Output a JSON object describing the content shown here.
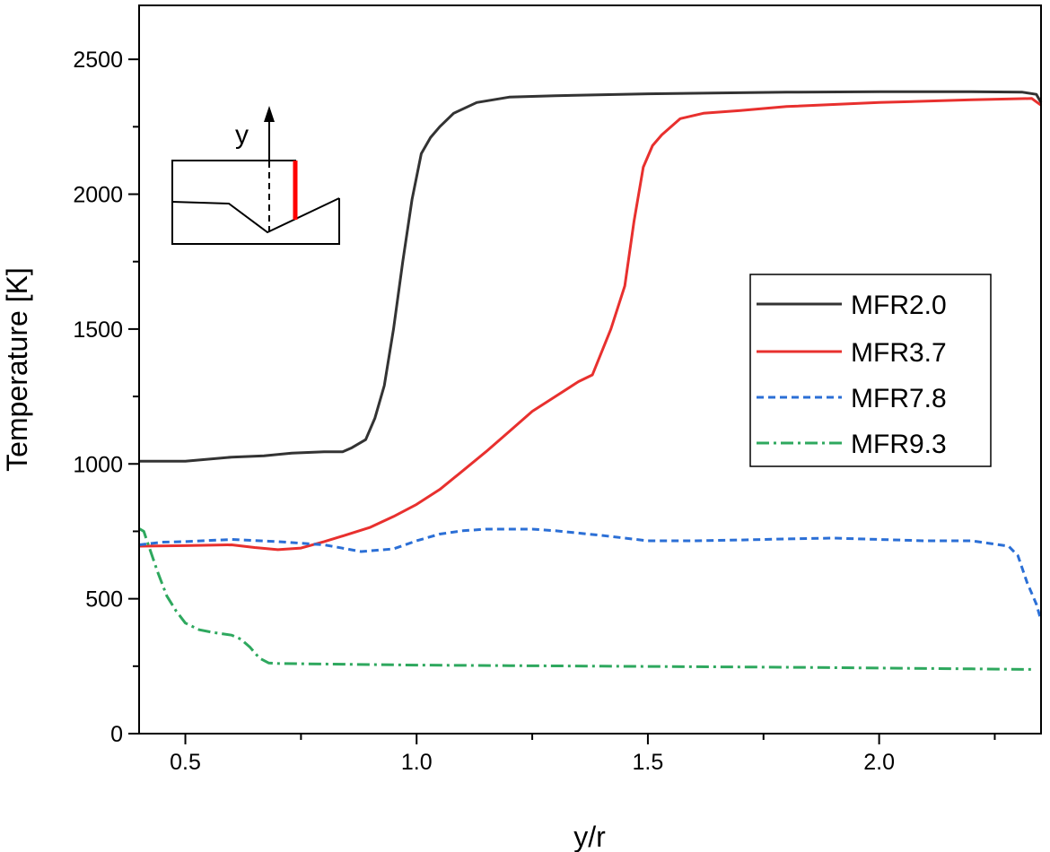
{
  "chart_data": {
    "type": "line",
    "xlabel": "y/r",
    "ylabel": "Temperature [K]",
    "xlim": [
      0.4,
      2.35
    ],
    "ylim": [
      0,
      2700
    ],
    "xticks": [
      0.5,
      1.0,
      1.5,
      2.0
    ],
    "xtick_labels": [
      "0.5",
      "1.0",
      "1.5",
      "2.0"
    ],
    "yticks": [
      0,
      500,
      1000,
      1500,
      2000,
      2500
    ],
    "ytick_labels": [
      "0",
      "500",
      "1000",
      "1500",
      "2000",
      "2500"
    ],
    "legend_position": "right",
    "series": [
      {
        "name": "MFR2.0",
        "color": "#333333",
        "style": "solid",
        "x": [
          0.4,
          0.5,
          0.6,
          0.67,
          0.73,
          0.8,
          0.84,
          0.86,
          0.89,
          0.91,
          0.93,
          0.95,
          0.97,
          0.99,
          1.01,
          1.03,
          1.05,
          1.08,
          1.13,
          1.2,
          1.3,
          1.5,
          1.8,
          2.0,
          2.2,
          2.31,
          2.34,
          2.35
        ],
        "y": [
          1010,
          1010,
          1025,
          1030,
          1040,
          1045,
          1045,
          1060,
          1090,
          1170,
          1290,
          1500,
          1750,
          1980,
          2150,
          2210,
          2250,
          2300,
          2340,
          2360,
          2365,
          2372,
          2378,
          2380,
          2380,
          2378,
          2370,
          2340
        ]
      },
      {
        "name": "MFR3.7",
        "color": "#e8302e",
        "style": "solid",
        "x": [
          0.4,
          0.5,
          0.6,
          0.65,
          0.7,
          0.75,
          0.8,
          0.85,
          0.9,
          0.95,
          1.0,
          1.05,
          1.1,
          1.15,
          1.2,
          1.25,
          1.3,
          1.35,
          1.38,
          1.42,
          1.45,
          1.47,
          1.49,
          1.51,
          1.53,
          1.57,
          1.62,
          1.7,
          1.8,
          2.0,
          2.2,
          2.33,
          2.35
        ],
        "y": [
          695,
          697,
          700,
          690,
          682,
          688,
          712,
          738,
          765,
          805,
          850,
          905,
          975,
          1045,
          1120,
          1195,
          1250,
          1305,
          1330,
          1500,
          1660,
          1900,
          2100,
          2180,
          2220,
          2280,
          2300,
          2310,
          2325,
          2340,
          2350,
          2355,
          2330
        ]
      },
      {
        "name": "MFR7.8",
        "color": "#2b6fd6",
        "style": "dashed",
        "x": [
          0.4,
          0.45,
          0.5,
          0.6,
          0.7,
          0.8,
          0.88,
          0.95,
          1.0,
          1.05,
          1.1,
          1.15,
          1.2,
          1.25,
          1.3,
          1.4,
          1.5,
          1.6,
          1.7,
          1.8,
          1.9,
          2.0,
          2.1,
          2.2,
          2.28,
          2.3,
          2.32,
          2.34,
          2.35
        ],
        "y": [
          700,
          710,
          712,
          720,
          712,
          700,
          675,
          685,
          715,
          740,
          752,
          758,
          758,
          758,
          752,
          735,
          715,
          715,
          718,
          722,
          725,
          720,
          715,
          715,
          695,
          660,
          560,
          480,
          420
        ]
      },
      {
        "name": "MFR9.3",
        "color": "#2ea85e",
        "style": "dashdot",
        "x": [
          0.4,
          0.41,
          0.42,
          0.44,
          0.46,
          0.48,
          0.5,
          0.53,
          0.56,
          0.6,
          0.62,
          0.64,
          0.66,
          0.68,
          0.7,
          0.8,
          0.9,
          1.0,
          1.2,
          1.4,
          1.6,
          1.8,
          2.0,
          2.2,
          2.33
        ],
        "y": [
          760,
          750,
          700,
          600,
          510,
          455,
          410,
          385,
          375,
          365,
          350,
          320,
          280,
          262,
          260,
          258,
          256,
          254,
          252,
          250,
          248,
          246,
          243,
          240,
          238
        ]
      }
    ]
  }
}
